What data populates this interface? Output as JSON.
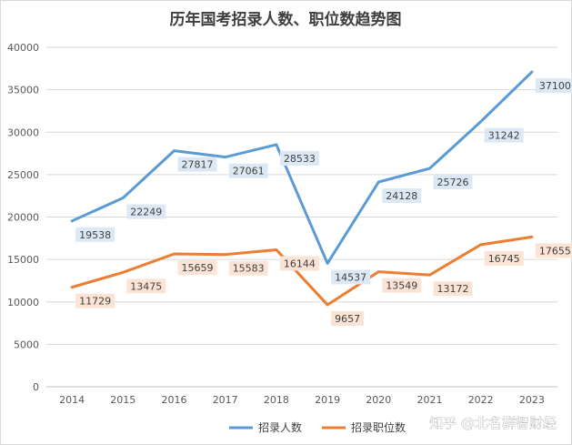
{
  "chart_data": {
    "type": "line",
    "title": "历年国考招录人数、职位数趋势图",
    "xlabel": "",
    "ylabel": "",
    "categories": [
      "2014",
      "2015",
      "2016",
      "2017",
      "2018",
      "2019",
      "2020",
      "2021",
      "2022",
      "2023"
    ],
    "ylim": [
      0,
      40000
    ],
    "yticks": [
      0,
      5000,
      10000,
      15000,
      20000,
      25000,
      30000,
      35000,
      40000
    ],
    "grid": true,
    "legend_position": "bottom",
    "series": [
      {
        "name": "招录人数",
        "color": "#5b9bd5",
        "label_bg": "#dce9f5",
        "values": [
          19538,
          22249,
          27817,
          27061,
          28533,
          14537,
          24128,
          25726,
          31242,
          37100
        ]
      },
      {
        "name": "招录职位数",
        "color": "#ed7d31",
        "label_bg": "#fbe4d5",
        "values": [
          11729,
          13475,
          15659,
          15583,
          16144,
          9657,
          13549,
          13172,
          16745,
          17655
        ]
      }
    ]
  },
  "watermark": "知乎 @北名群智财经"
}
